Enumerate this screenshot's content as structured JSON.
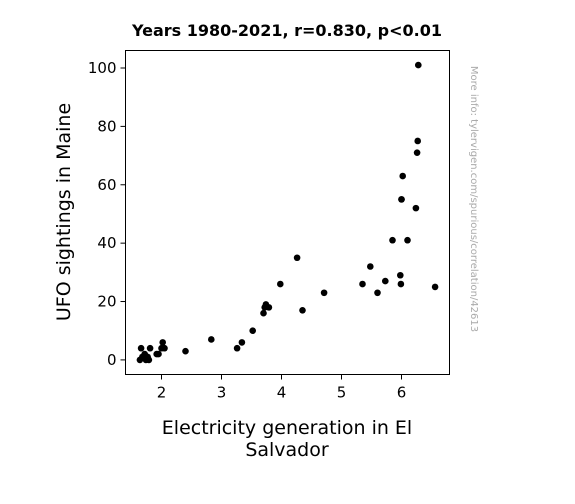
{
  "chart_data": {
    "type": "scatter",
    "title": "Years 1980-2021, r=0.830, p<0.01",
    "xlabel_lines": [
      "Electricity generation in El",
      "Salvador"
    ],
    "ylabel": "UFO sightings in Maine",
    "side_note": "More info: tylervigen.com/spurious/correlation/42613",
    "xlim": [
      1.4,
      6.8
    ],
    "ylim": [
      -5,
      106
    ],
    "xticks": [
      2,
      3,
      4,
      5,
      6
    ],
    "yticks": [
      0,
      20,
      40,
      60,
      80,
      100
    ],
    "grid": false,
    "marker_color": "#000000",
    "points": [
      [
        1.64,
        0
      ],
      [
        1.66,
        4
      ],
      [
        1.68,
        1
      ],
      [
        1.72,
        2
      ],
      [
        1.74,
        0
      ],
      [
        1.77,
        1
      ],
      [
        1.79,
        0
      ],
      [
        1.81,
        4
      ],
      [
        1.92,
        2
      ],
      [
        1.95,
        2
      ],
      [
        2.0,
        4
      ],
      [
        2.02,
        6
      ],
      [
        2.05,
        4
      ],
      [
        2.4,
        3
      ],
      [
        2.83,
        7
      ],
      [
        3.26,
        4
      ],
      [
        3.34,
        6
      ],
      [
        3.52,
        10
      ],
      [
        3.7,
        16
      ],
      [
        3.72,
        18
      ],
      [
        3.74,
        19
      ],
      [
        3.79,
        18
      ],
      [
        3.98,
        26
      ],
      [
        4.26,
        35
      ],
      [
        4.35,
        17
      ],
      [
        4.71,
        23
      ],
      [
        5.35,
        26
      ],
      [
        5.48,
        32
      ],
      [
        5.6,
        23
      ],
      [
        5.73,
        27
      ],
      [
        5.85,
        41
      ],
      [
        5.98,
        29
      ],
      [
        5.99,
        26
      ],
      [
        6.0,
        55
      ],
      [
        6.0,
        55
      ],
      [
        6.02,
        63
      ],
      [
        6.1,
        41
      ],
      [
        6.24,
        52
      ],
      [
        6.26,
        71
      ],
      [
        6.27,
        75
      ],
      [
        6.28,
        101
      ],
      [
        6.56,
        25
      ]
    ]
  }
}
